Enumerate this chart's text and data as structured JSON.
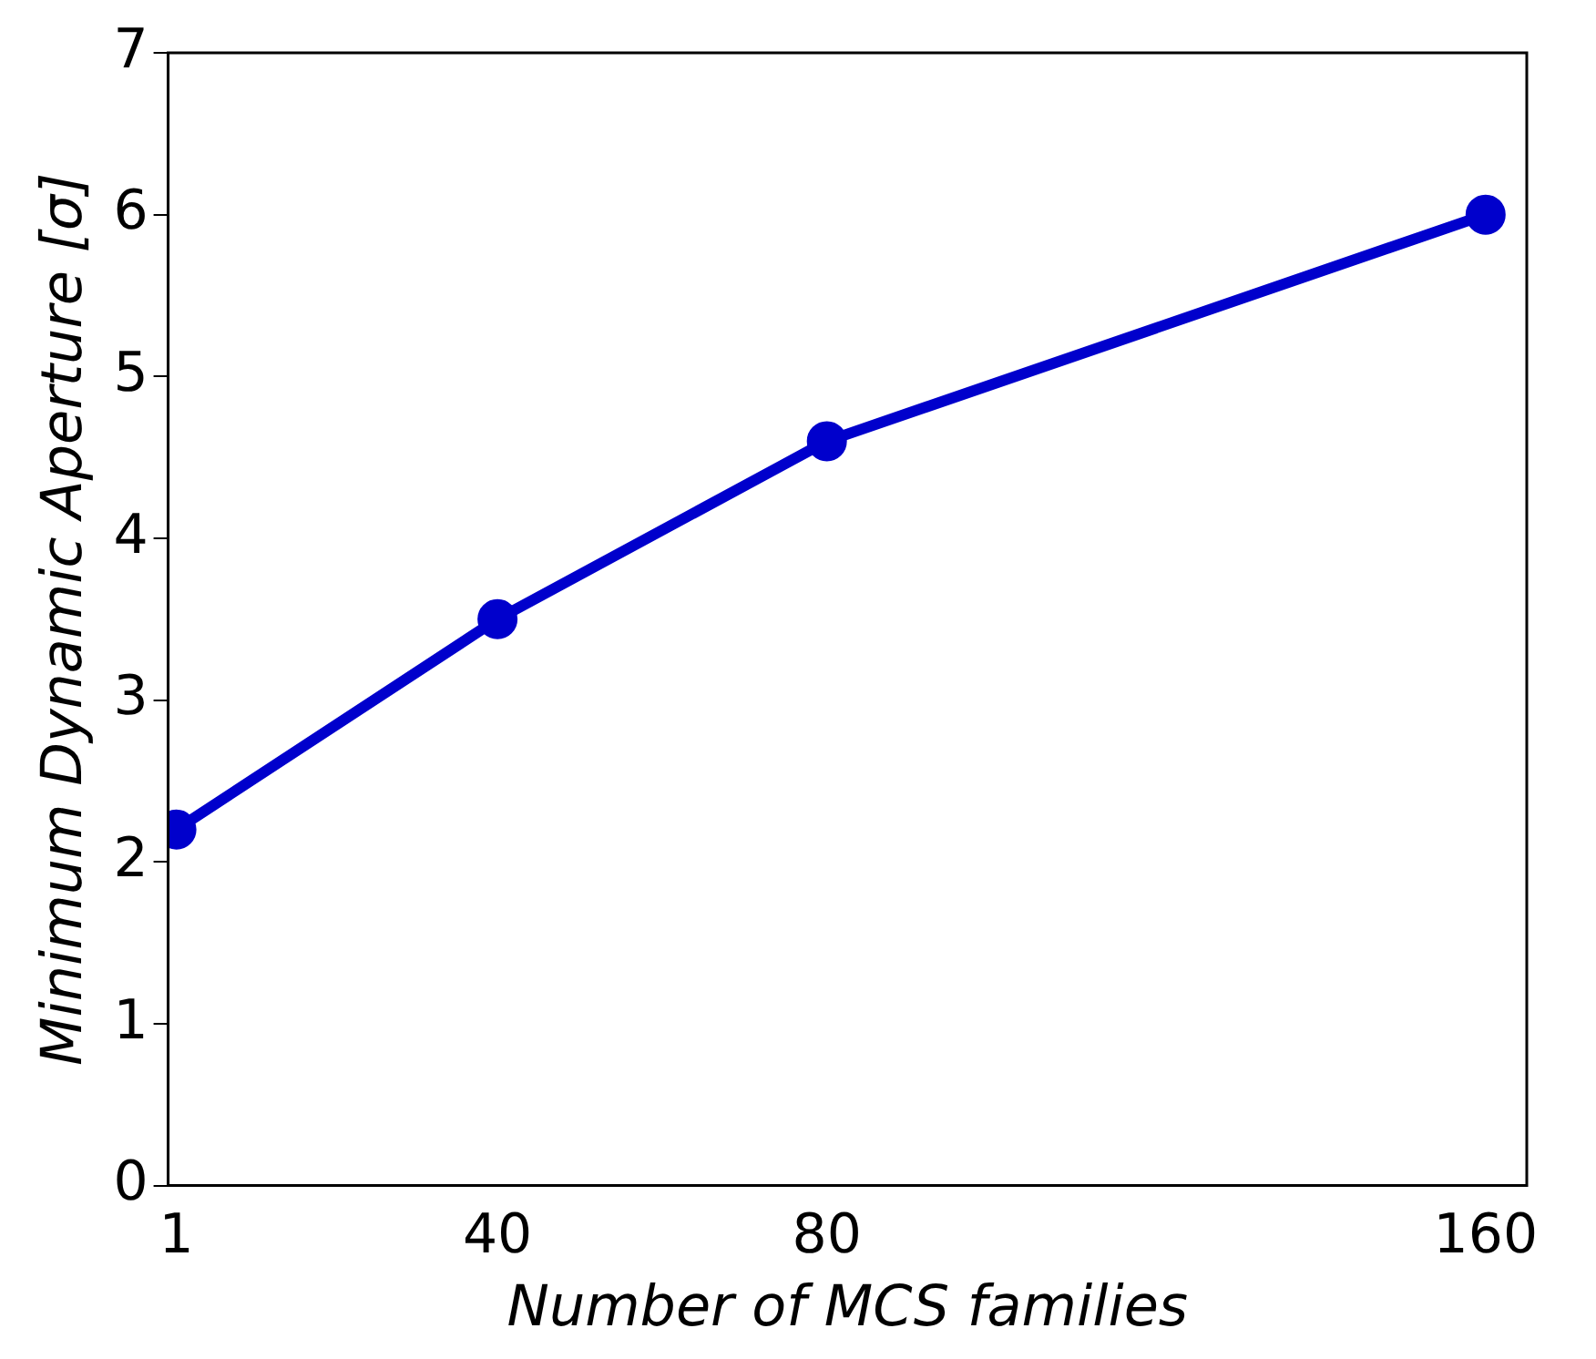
{
  "chart_data": {
    "type": "line",
    "xlabel": "Number of MCS families",
    "ylabel": "Minimum Dynamic Aperture [σ]",
    "x": [
      1,
      40,
      80,
      160
    ],
    "series": [
      {
        "color": "#0000cc",
        "values": [
          2.2,
          3.5,
          4.6,
          6.0
        ]
      }
    ],
    "xlim": [
      0,
      165
    ],
    "xticks": [
      1,
      40,
      80,
      160
    ],
    "ylim": [
      0,
      7
    ],
    "yticks": [
      0,
      1,
      2,
      3,
      4,
      5,
      6,
      7
    ],
    "grid": false,
    "legend": false,
    "marker": "circle",
    "line_style": "solid"
  }
}
